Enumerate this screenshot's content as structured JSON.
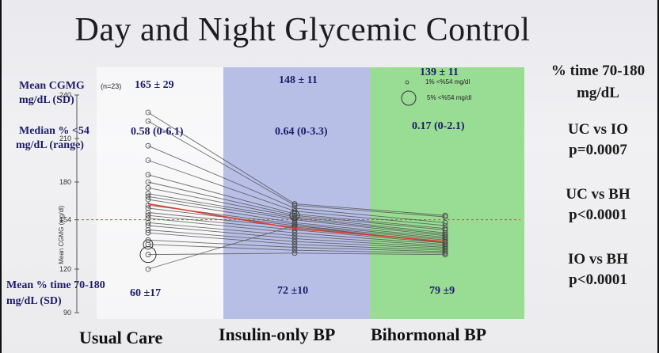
{
  "title": "Day and Night Glycemic Control",
  "left_labels": {
    "mean_cgmg": "Mean CGMG",
    "mean_cgmg_units": "mg/dL (SD)",
    "n_note": "(n=23)",
    "median_pct": "Median % <54",
    "median_pct_units": "mg/dL (range)",
    "mean_time": "Mean % time 70-180",
    "mean_time_units": "mg/dL (SD)"
  },
  "groups": [
    {
      "name": "Usual Care",
      "mean_cgmg": "165 ± 29",
      "median_pct": "0.58 (0-6.1)",
      "mean_time": "60 ±17"
    },
    {
      "name": "Insulin-only BP",
      "mean_cgmg": "148 ± 11",
      "median_pct": "0.64 (0-3.3)",
      "mean_time": "72 ±10"
    },
    {
      "name": "Bihormonal BP",
      "mean_cgmg": "139 ± 11",
      "median_pct": "0.17 (0-2.1)",
      "mean_time": "79 ±9"
    }
  ],
  "legend": {
    "small": "1% <%54 mg/dl",
    "large": "5% <%54 mg/dl"
  },
  "stats": {
    "heading": "% time 70-180 mg/dL",
    "uc_vs_io": "UC vs IO",
    "uc_vs_io_p": "p=0.0007",
    "uc_vs_bh": "UC vs BH",
    "uc_vs_bh_p": "p<0.0001",
    "io_vs_bh": "IO vs BH",
    "io_vs_bh_p": "p<0.0001"
  },
  "colors": {
    "io_band": "#b8bfe7",
    "bh_band": "#99dc93",
    "label_text": "#1c1c68",
    "mean_line": "#e23b2e",
    "reference_line": "#d84a3a"
  },
  "chart_data": {
    "type": "line",
    "title": "",
    "ylabel": "Mean CGMG (mg/dl)",
    "xlabel": "",
    "categories": [
      "Usual Care",
      "Insulin-only BP",
      "Bihormonal BP"
    ],
    "ylim": [
      90,
      240
    ],
    "yticks": [
      90,
      120,
      154,
      180,
      210,
      240
    ],
    "reference_line": 154,
    "mean_series": {
      "values": [
        165,
        148,
        139
      ]
    },
    "series": [
      {
        "values": [
          228,
          165,
          157
        ]
      },
      {
        "values": [
          222,
          164,
          156
        ]
      },
      {
        "values": [
          205,
          162,
          152
        ]
      },
      {
        "values": [
          195,
          160,
          150
        ]
      },
      {
        "values": [
          185,
          158,
          148
        ]
      },
      {
        "values": [
          180,
          157,
          147
        ]
      },
      {
        "values": [
          176,
          156,
          145
        ]
      },
      {
        "values": [
          172,
          155,
          144
        ]
      },
      {
        "values": [
          170,
          154,
          143
        ]
      },
      {
        "values": [
          168,
          152,
          142
        ]
      },
      {
        "values": [
          164,
          151,
          141
        ]
      },
      {
        "values": [
          162,
          150,
          140
        ]
      },
      {
        "values": [
          159,
          149,
          139
        ]
      },
      {
        "values": [
          157,
          147,
          138
        ]
      },
      {
        "values": [
          155,
          145,
          137
        ]
      },
      {
        "values": [
          152,
          143,
          136
        ]
      },
      {
        "values": [
          150,
          141,
          135
        ]
      },
      {
        "values": [
          147,
          139,
          134
        ]
      },
      {
        "values": [
          145,
          137,
          133
        ]
      },
      {
        "values": [
          140,
          135,
          132
        ]
      },
      {
        "values": [
          137,
          133,
          131
        ]
      },
      {
        "values": [
          130,
          131,
          130
        ]
      },
      {
        "values": [
          120,
          150,
          138
        ]
      }
    ]
  }
}
